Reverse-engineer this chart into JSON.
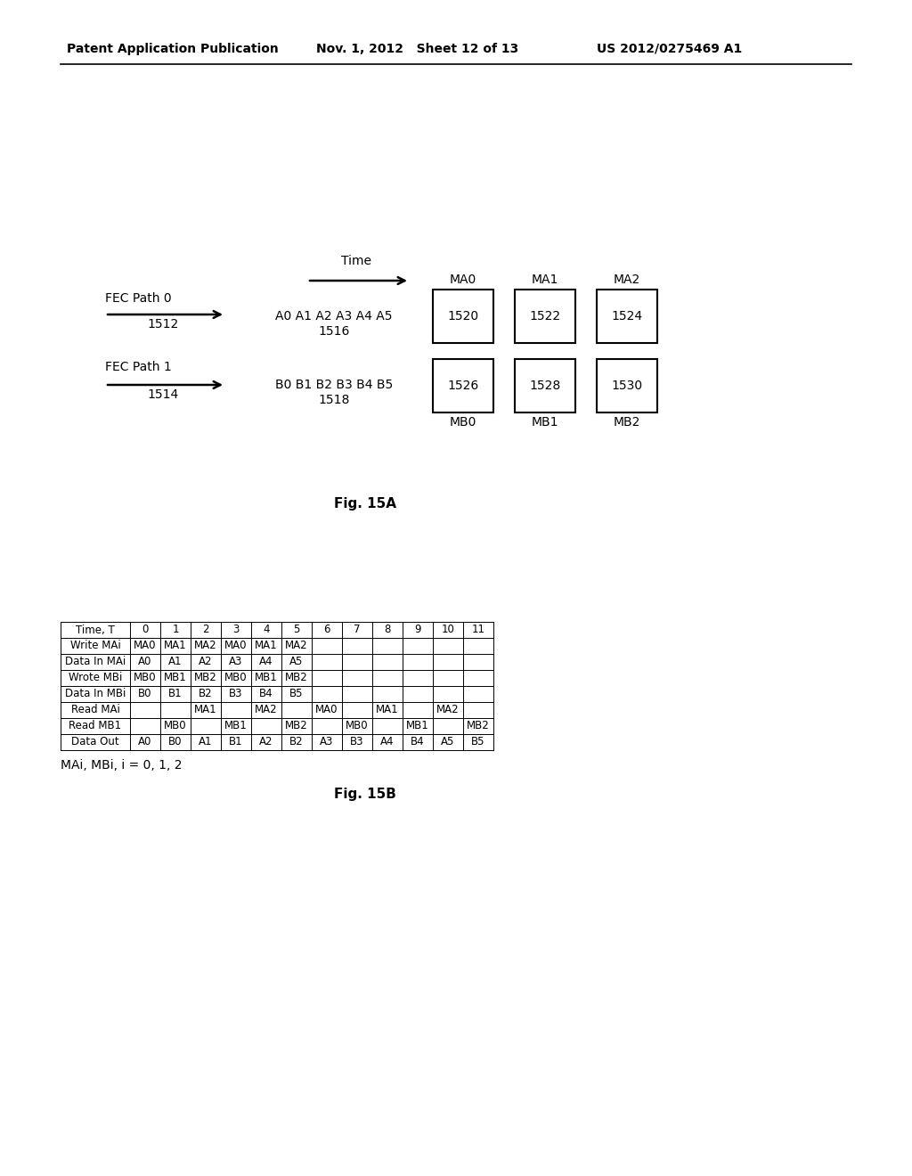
{
  "header_left": "Patent Application Publication",
  "header_mid": "Nov. 1, 2012   Sheet 12 of 13",
  "header_right": "US 2012/0275469 A1",
  "fig15a_label": "Fig. 15A",
  "fig15b_label": "Fig. 15B",
  "time_label": "Time",
  "fec_path0_label": "FEC Path 0",
  "fec_path1_label": "FEC Path 1",
  "arrow0_label": "1512",
  "arrow1_label": "1514",
  "seq_A_label": "A0 A1 A2 A3 A4 A5",
  "seq_A_num": "1516",
  "seq_B_label": "B0 B1 B2 B3 B4 B5",
  "seq_B_num": "1518",
  "MA_labels": [
    "MA0",
    "MA1",
    "MA2"
  ],
  "MB_labels": [
    "MB0",
    "MB1",
    "MB2"
  ],
  "MA_nums": [
    "1520",
    "1522",
    "1524"
  ],
  "MB_nums": [
    "1526",
    "1528",
    "1530"
  ],
  "table_rows": [
    [
      "Time, T",
      "0",
      "1",
      "2",
      "3",
      "4",
      "5",
      "6",
      "7",
      "8",
      "9",
      "10",
      "11"
    ],
    [
      "Write MAi",
      "MA0",
      "MA1",
      "MA2",
      "MA0",
      "MA1",
      "MA2",
      "",
      "",
      "",
      "",
      "",
      ""
    ],
    [
      "Data In MAi",
      "A0",
      "A1",
      "A2",
      "A3",
      "A4",
      "A5",
      "",
      "",
      "",
      "",
      "",
      ""
    ],
    [
      "Wrote MBi",
      "MB0",
      "MB1",
      "MB2",
      "MB0",
      "MB1",
      "MB2",
      "",
      "",
      "",
      "",
      "",
      ""
    ],
    [
      "Data In MBi",
      "B0",
      "B1",
      "B2",
      "B3",
      "B4",
      "B5",
      "",
      "",
      "",
      "",
      "",
      ""
    ],
    [
      "Read MAi",
      "",
      "",
      "MA1",
      "",
      "MA2",
      "",
      "MA0",
      "",
      "MA1",
      "",
      "MA2",
      ""
    ],
    [
      "Read MB1",
      "",
      "MB0",
      "",
      "MB1",
      "",
      "MB2",
      "",
      "MB0",
      "",
      "MB1",
      "",
      "MB2"
    ],
    [
      "Data Out",
      "A0",
      "B0",
      "A1",
      "B1",
      "A2",
      "B2",
      "A3",
      "B3",
      "A4",
      "B4",
      "A5",
      "B5"
    ]
  ],
  "note_label": "MAi, MBi, i = 0, 1, 2",
  "bg_color": "#ffffff",
  "text_color": "#000000",
  "header_fontsize": 10,
  "diagram_fontsize": 10,
  "table_fontsize": 8.5
}
